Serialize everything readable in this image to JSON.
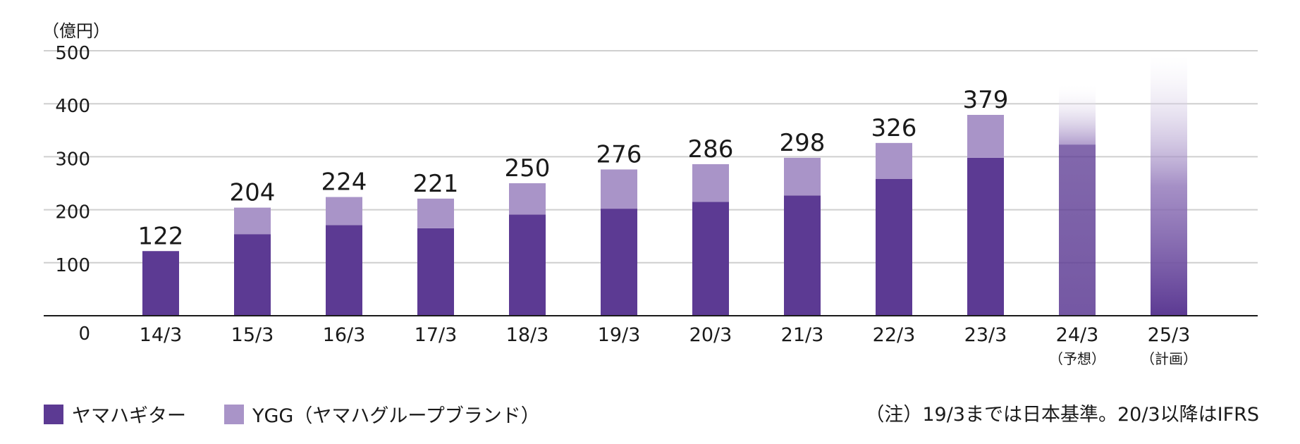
{
  "unit_label": "（億円）",
  "legend": [
    {
      "label": "ヤマハギター",
      "color": "#5c3a93"
    },
    {
      "label": "YGG（ヤマハグループブランド）",
      "color": "#a994c8"
    }
  ],
  "note": "（注）19/3までは日本基準。20/3以降はIFRS",
  "chart_data": {
    "type": "bar",
    "stacked": true,
    "ylim": [
      0,
      500
    ],
    "yticks": [
      "0",
      "100",
      "200",
      "300",
      "400",
      "500"
    ],
    "categories": [
      "14/3",
      "15/3",
      "16/3",
      "17/3",
      "18/3",
      "19/3",
      "20/3",
      "21/3",
      "22/3",
      "23/3",
      "24/3",
      "25/3"
    ],
    "category_sublabels": [
      "",
      "",
      "",
      "",
      "",
      "",
      "",
      "",
      "",
      "",
      "（予想）",
      "（計画）"
    ],
    "totals_labels": [
      "122",
      "204",
      "224",
      "221",
      "250",
      "276",
      "286",
      "298",
      "326",
      "379",
      "",
      ""
    ],
    "series": [
      {
        "name": "ヤマハギター",
        "color": "#5c3a93",
        "values": [
          122,
          154,
          171,
          165,
          191,
          202,
          215,
          227,
          258,
          298,
          323,
          null
        ]
      },
      {
        "name": "YGG（ヤマハグループブランド）",
        "color": "#a994c8",
        "values": [
          0,
          50,
          53,
          56,
          59,
          74,
          71,
          71,
          68,
          81,
          null,
          null
        ]
      }
    ],
    "gradient_bars": [
      {
        "category": "24/3",
        "solid_top": 323,
        "fade_top": 440,
        "color": "#5c3a93"
      },
      {
        "category": "25/3",
        "solid_top": 0,
        "fade_top": 490,
        "color": "#5c3a93"
      }
    ],
    "grid": true
  }
}
